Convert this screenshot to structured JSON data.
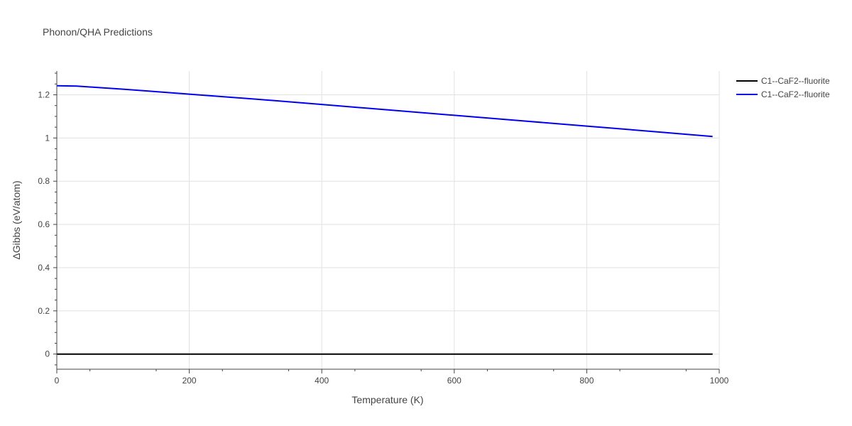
{
  "chart_data": {
    "type": "line",
    "title": "Phonon/QHA Predictions",
    "xlabel": "Temperature (K)",
    "ylabel": "ΔGibbs (eV/atom)",
    "xlim": [
      0,
      1000
    ],
    "ylim": [
      -0.07,
      1.31
    ],
    "x_ticks": [
      0,
      200,
      400,
      600,
      800,
      1000
    ],
    "x_tick_labels": [
      "0",
      "200",
      "400",
      "600",
      "800",
      "1000"
    ],
    "y_ticks": [
      0,
      0.2,
      0.4,
      0.6,
      0.8,
      1,
      1.2
    ],
    "y_tick_labels": [
      "0",
      "0.2",
      "0.4",
      "0.6",
      "0.8",
      "1",
      "1.2"
    ],
    "grid": true,
    "legend_position": "top-right",
    "series": [
      {
        "name": "C1--CaF2--fluorite",
        "color": "#000000",
        "x": [
          0,
          990
        ],
        "y": [
          0,
          0
        ]
      },
      {
        "name": "C1--CaF2--fluorite",
        "color": "#0000ee",
        "x": [
          0,
          30,
          100,
          200,
          300,
          400,
          500,
          600,
          700,
          800,
          900,
          990
        ],
        "y": [
          1.242,
          1.24,
          1.226,
          1.203,
          1.18,
          1.155,
          1.13,
          1.105,
          1.08,
          1.055,
          1.03,
          1.007
        ]
      }
    ]
  }
}
